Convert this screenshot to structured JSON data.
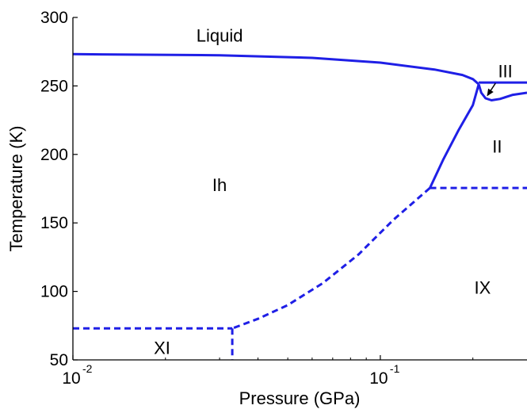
{
  "chart_data": {
    "type": "line",
    "title": "",
    "xlabel": "Pressure (GPa)",
    "ylabel": "Temperature (K)",
    "x_scale": "log",
    "xlim": [
      0.01,
      0.3
    ],
    "ylim": [
      50,
      300
    ],
    "grid": false,
    "x_ticks": [
      {
        "value": 0.01,
        "base": "10",
        "exp": "-2"
      },
      {
        "value": 0.1,
        "base": "10",
        "exp": "-1"
      }
    ],
    "y_ticks": [
      {
        "value": 50,
        "label": "50"
      },
      {
        "value": 100,
        "label": "100"
      },
      {
        "value": 150,
        "label": "150"
      },
      {
        "value": 200,
        "label": "200"
      },
      {
        "value": 250,
        "label": "250"
      },
      {
        "value": 300,
        "label": "300"
      }
    ],
    "line_color": "#1f1fe6",
    "series": [
      {
        "style": "solid",
        "points": [
          [
            0.01,
            273.2
          ],
          [
            0.03,
            272.4
          ],
          [
            0.06,
            270.5
          ],
          [
            0.1,
            267.0
          ],
          [
            0.15,
            262.0
          ],
          [
            0.185,
            258.0
          ],
          [
            0.2,
            255.0
          ],
          [
            0.209,
            251.2
          ]
        ]
      },
      {
        "style": "solid",
        "points": [
          [
            0.209,
            252.5
          ],
          [
            0.3,
            252.5
          ]
        ]
      },
      {
        "style": "solid",
        "points": [
          [
            0.209,
            251.2
          ],
          [
            0.213,
            245.0
          ],
          [
            0.22,
            241.0
          ],
          [
            0.23,
            239.5
          ],
          [
            0.245,
            240.5
          ],
          [
            0.27,
            243.5
          ],
          [
            0.3,
            245.0
          ]
        ]
      },
      {
        "style": "solid",
        "points": [
          [
            0.209,
            251.2
          ],
          [
            0.2,
            236.0
          ],
          [
            0.18,
            218.0
          ],
          [
            0.16,
            196.0
          ],
          [
            0.145,
            175.5
          ]
        ]
      },
      {
        "style": "dashed",
        "points": [
          [
            0.145,
            175.5
          ],
          [
            0.3,
            175.5
          ]
        ]
      },
      {
        "style": "dashed",
        "points": [
          [
            0.145,
            175.5
          ],
          [
            0.11,
            152.0
          ],
          [
            0.085,
            127.0
          ],
          [
            0.065,
            106.0
          ],
          [
            0.05,
            90.0
          ],
          [
            0.04,
            80.0
          ],
          [
            0.033,
            73.0
          ]
        ]
      },
      {
        "style": "dashed",
        "points": [
          [
            0.01,
            73.0
          ],
          [
            0.033,
            73.0
          ]
        ]
      },
      {
        "style": "dashed",
        "points": [
          [
            0.033,
            73.0
          ],
          [
            0.033,
            50.0
          ]
        ]
      }
    ],
    "annotations": [
      {
        "text": "Liquid",
        "x": 0.03,
        "y": 287
      },
      {
        "text": "III",
        "x": 0.255,
        "y": 261
      },
      {
        "text": "II",
        "x": 0.24,
        "y": 206
      },
      {
        "text": "Ih",
        "x": 0.03,
        "y": 178
      },
      {
        "text": "IX",
        "x": 0.215,
        "y": 103
      },
      {
        "text": "XI",
        "x": 0.0195,
        "y": 59
      }
    ],
    "arrow": {
      "from": [
        0.237,
        252.0
      ],
      "to": [
        0.223,
        243.0
      ]
    }
  }
}
